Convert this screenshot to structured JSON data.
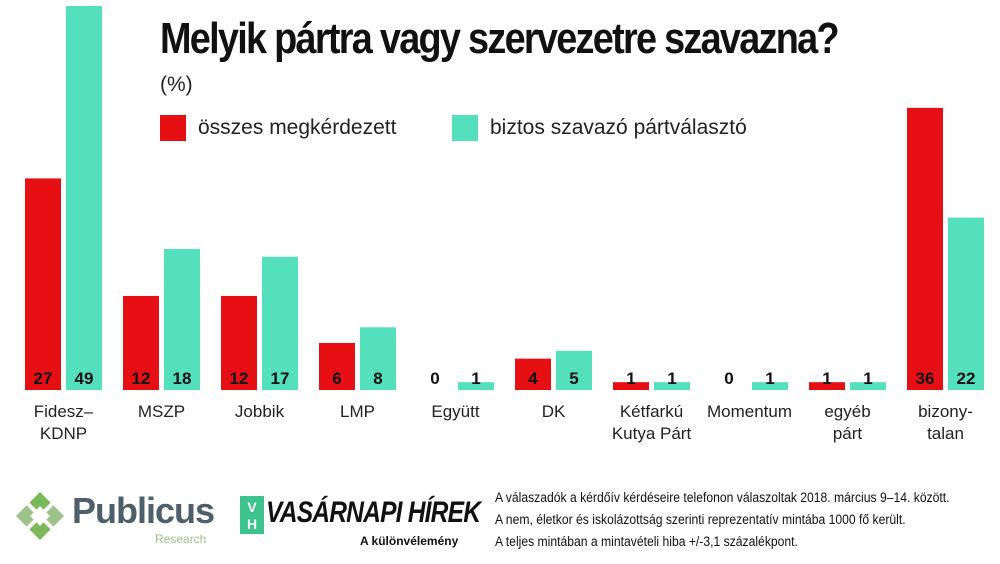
{
  "title": "Melyik pártra vagy szervezetre szavazna?",
  "unit": "(%)",
  "colors": {
    "series1": "#e60f14",
    "series2": "#55e0bd",
    "publicus_green": "#7ab85a",
    "vh_green": "#3ec28e"
  },
  "chart_data": {
    "type": "bar",
    "title": "Melyik pártra vagy szervezetre szavazna?",
    "ylabel": "(%)",
    "categories": [
      [
        "Fidesz–",
        "KDNP"
      ],
      [
        "MSZP"
      ],
      [
        "Jobbik"
      ],
      [
        "LMP"
      ],
      [
        "Együtt"
      ],
      [
        "DK"
      ],
      [
        "Kétfarkú",
        "Kutya Párt"
      ],
      [
        "Momentum"
      ],
      [
        "egyéb",
        "párt"
      ],
      [
        "bizony-",
        "talan"
      ]
    ],
    "series": [
      {
        "name": "összes megkérdezett",
        "values": [
          27,
          12,
          12,
          6,
          0,
          4,
          1,
          0,
          1,
          36
        ]
      },
      {
        "name": "biztos szavazó pártválasztó",
        "values": [
          49,
          18,
          17,
          8,
          1,
          5,
          1,
          1,
          1,
          22
        ]
      }
    ],
    "ylim": [
      0,
      49
    ],
    "legend": "top-left",
    "grid": false
  },
  "footer": {
    "notes": [
      "A válaszadók a kérdőív kérdéseire telefonon válaszoltak 2018. március 9–14. között.",
      "A nem, életkor és iskolázottság szerinti reprezentatív mintába 1000 fő került.",
      "A teljes mintában a mintavételi hiba +/-3,1 százalékpont."
    ]
  },
  "logos": {
    "publicus": {
      "name": "Publicus",
      "sub": "Research"
    },
    "vh": {
      "badge": "VH",
      "name": "VASÁRNAPI HÍREK",
      "tagline": "A különvélemény"
    }
  }
}
